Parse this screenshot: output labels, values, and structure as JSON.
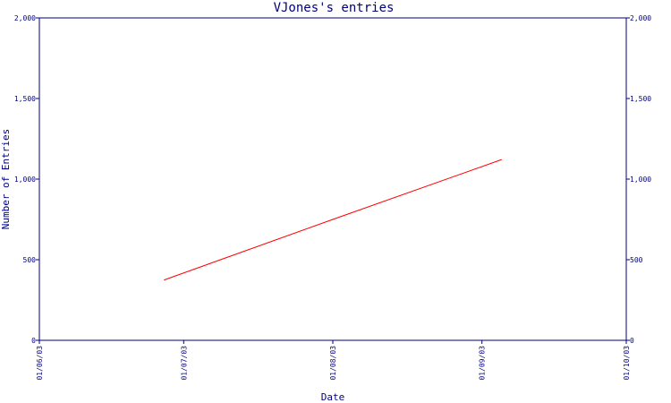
{
  "chart_data": {
    "type": "line",
    "title": "VJones's entries",
    "xlabel": "Date",
    "ylabel": "Number of Entries",
    "x_ticks": [
      "01/06/03",
      "01/07/03",
      "01/08/03",
      "01/09/03",
      "01/10/03"
    ],
    "y_ticks": [
      "0",
      "500",
      "1,000",
      "1,500",
      "2,000"
    ],
    "ylim": [
      0,
      2000
    ],
    "xlim": [
      "01/06/03",
      "01/10/03"
    ],
    "y_axis_both_sides": true,
    "grid": false,
    "series": [
      {
        "color": "#ff0000",
        "points": [
          {
            "x": "01/06/03 + 27 days",
            "date": "2003-06-27",
            "y": 375
          },
          {
            "x": "01/08/03",
            "date": "2003-08-01",
            "y": 750
          },
          {
            "x": "01/09/03 + 5 days",
            "date": "2003-09-05",
            "y": 1120
          }
        ]
      }
    ],
    "colors": {
      "axis": "#000080",
      "line": "#ff0000",
      "text": "#000080"
    }
  }
}
